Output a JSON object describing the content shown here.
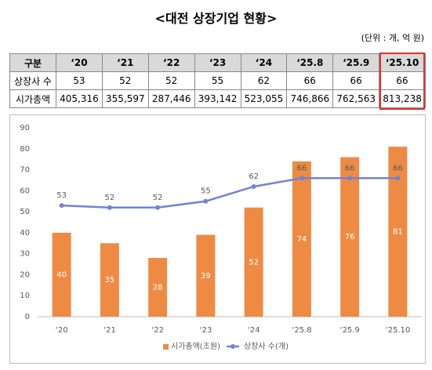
{
  "title": "<대전 상장기업 현황>",
  "unit": "(단위 : 개, 억 원)",
  "table": {
    "header": [
      "구분",
      "‘20",
      "‘21",
      "‘22",
      "‘23",
      "‘24",
      "‘25.8",
      "‘25.9",
      "‘25.10"
    ],
    "rows": [
      [
        "상장사 수",
        "53",
        "52",
        "52",
        "55",
        "62",
        "66",
        "66",
        "66"
      ],
      [
        "시가총액",
        "405,316",
        "355,597",
        "287,446",
        "393,142",
        "523,055",
        "746,866",
        "762,563",
        "813,238"
      ]
    ]
  },
  "chart_data": {
    "type": "bar-line",
    "categories": [
      "‘20",
      "‘21",
      "‘22",
      "‘23",
      "‘24",
      "‘25.8",
      "‘25.9",
      "‘25.10"
    ],
    "series": [
      {
        "name": "시가총액(조원)",
        "type": "bar",
        "color": "#ed8b45",
        "values": [
          40,
          35,
          28,
          39,
          52,
          74,
          76,
          81
        ]
      },
      {
        "name": "상장사 수(개)",
        "type": "line",
        "color": "#7383d2",
        "values": [
          53,
          52,
          52,
          55,
          62,
          66,
          66,
          66
        ]
      }
    ],
    "ylim": [
      0,
      90
    ],
    "yticks": [
      0,
      10,
      20,
      30,
      40,
      50,
      60,
      70,
      80,
      90
    ],
    "grid": false
  }
}
